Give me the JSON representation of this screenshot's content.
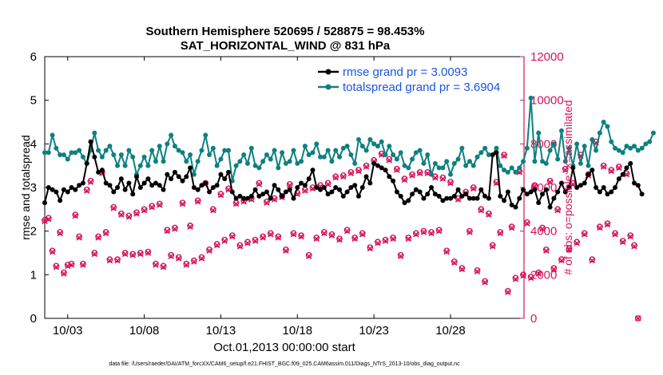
{
  "chart_data": {
    "type": "line",
    "title": "Southern Hemisphere 520695 / 528875 = 98.453%",
    "subtitle": "SAT_HORIZONTAL_WIND @ 831 hPa",
    "xlabel": "Oct.01,2013 00:00:00 start",
    "ylabel_left": "rmse and totalspread",
    "ylabel_right": "# of obs: o=possible; ×=assimilated",
    "footer": "data file: /Users/raeder/DAI/ATM_forcXX/CAM6_setup/f.e21.FHIST_BGC.f09_025.CAM6assim.011/Diags_NTrS_2013-10/obs_diag_output.nc",
    "xlim": [
      1.5,
      32.8
    ],
    "ylim_left": [
      0,
      6
    ],
    "ylim_right": [
      0,
      12000
    ],
    "x_ticks": [
      3,
      8,
      13,
      18,
      23,
      28
    ],
    "x_tick_labels": [
      "10/03",
      "10/08",
      "10/13",
      "10/18",
      "10/23",
      "10/28"
    ],
    "y_left_ticks": [
      "0",
      "1",
      "2",
      "3",
      "4",
      "5",
      "6"
    ],
    "y_right_ticks": [
      "0",
      "2000",
      "4000",
      "6000",
      "8000",
      "10000",
      "12000"
    ],
    "colors": {
      "rmse": "#000000",
      "spread": "#0e8080",
      "obs": "#d4145a",
      "legend_text": "#1a55e0"
    },
    "series": [
      {
        "name": "rmse grand pr = 3.0093",
        "axis": "left",
        "x_start": 1.5,
        "x_step": 0.25,
        "values": [
          2.65,
          3.0,
          2.95,
          2.9,
          2.7,
          2.95,
          2.9,
          3.0,
          2.95,
          3.05,
          3.1,
          3.55,
          4.05,
          3.7,
          3.35,
          3.4,
          3.1,
          3.05,
          2.9,
          3.0,
          3.2,
          2.95,
          3.1,
          2.85,
          3.25,
          3.0,
          3.1,
          3.2,
          3.05,
          3.1,
          3.05,
          2.95,
          3.3,
          3.2,
          3.35,
          3.25,
          3.15,
          3.25,
          3.45,
          3.0,
          2.95,
          3.05,
          3.1,
          2.9,
          3.0,
          3.05,
          3.3,
          3.2,
          3.35,
          2.9,
          2.75,
          2.8,
          2.75,
          2.75,
          2.8,
          2.95,
          2.8,
          2.85,
          2.9,
          2.75,
          3.05,
          2.95,
          2.8,
          2.9,
          2.95,
          2.75,
          3.0,
          3.1,
          3.05,
          3.2,
          3.4,
          3.0,
          2.95,
          3.0,
          2.85,
          2.9,
          3.0,
          2.95,
          2.8,
          2.9,
          3.0,
          3.05,
          2.8,
          3.0,
          3.25,
          3.1,
          3.55,
          3.5,
          3.45,
          3.4,
          3.25,
          3.15,
          2.9,
          2.8,
          2.65,
          2.7,
          2.85,
          2.95,
          2.9,
          2.75,
          2.85,
          3.0,
          2.85,
          2.8,
          2.7,
          2.75,
          2.75,
          2.8,
          2.95,
          2.8,
          2.85,
          2.75,
          2.75,
          2.75,
          2.95,
          2.8,
          2.75,
          3.75,
          3.8,
          2.8,
          2.7,
          2.9,
          2.6,
          2.55,
          2.75,
          2.95,
          2.85,
          2.9,
          2.95,
          2.65,
          2.85,
          2.95,
          2.55,
          2.75,
          2.9,
          3.1,
          2.9,
          3.0,
          3.45,
          3.0,
          3.05,
          3.1,
          3.3,
          3.4,
          3.0,
          2.9,
          3.0,
          2.85,
          2.9,
          3.0,
          3.2,
          3.3,
          3.45,
          3.55,
          3.1,
          3.05,
          2.85
        ]
      },
      {
        "name": "totalspread grand pr = 3.6904",
        "axis": "left",
        "x_start": 1.5,
        "x_step": 0.25,
        "values": [
          3.8,
          3.8,
          4.2,
          3.9,
          3.75,
          3.75,
          3.65,
          3.8,
          3.8,
          3.85,
          3.7,
          3.55,
          3.85,
          4.25,
          3.85,
          3.7,
          3.85,
          3.95,
          3.75,
          3.5,
          3.75,
          3.5,
          3.85,
          3.7,
          3.3,
          3.5,
          3.7,
          3.5,
          3.85,
          3.6,
          3.95,
          3.6,
          4.0,
          4.2,
          3.95,
          3.85,
          3.8,
          3.6,
          3.75,
          3.3,
          3.6,
          3.85,
          4.2,
          3.75,
          3.9,
          3.5,
          3.65,
          3.85,
          3.85,
          3.15,
          3.5,
          3.6,
          3.75,
          3.55,
          3.9,
          3.5,
          3.45,
          3.6,
          3.75,
          3.65,
          3.85,
          3.45,
          3.8,
          3.55,
          3.6,
          3.85,
          3.55,
          3.6,
          3.95,
          3.75,
          3.8,
          4.0,
          3.7,
          3.7,
          3.85,
          3.6,
          3.85,
          3.7,
          3.9,
          3.95,
          3.75,
          3.55,
          4.1,
          3.95,
          3.85,
          4.1,
          4.0,
          3.95,
          4.05,
          3.75,
          3.95,
          3.75,
          3.65,
          3.8,
          3.5,
          3.45,
          3.65,
          3.8,
          3.85,
          3.55,
          3.75,
          3.3,
          3.55,
          3.45,
          3.45,
          3.6,
          3.3,
          3.55,
          3.65,
          3.9,
          3.5,
          3.6,
          3.5,
          3.7,
          3.8,
          3.9,
          3.75,
          3.75,
          3.9,
          3.5,
          3.4,
          3.35,
          3.45,
          3.35,
          3.45,
          3.6,
          3.9,
          5.05,
          3.6,
          4.25,
          3.6,
          3.55,
          3.85,
          4.0,
          3.65,
          4.3,
          3.6,
          3.9,
          3.5,
          4.0,
          3.55,
          3.95,
          3.5,
          4.1,
          3.85,
          4.25,
          4.5,
          4.4,
          4.05,
          3.9,
          3.85,
          3.8,
          3.95,
          3.9,
          3.95,
          3.85,
          3.9,
          4.0,
          4.05,
          4.25
        ]
      },
      {
        "name": "obs possible",
        "axis": "right",
        "x_start": 1.5,
        "x_step": 0.25,
        "values": [
          4500,
          4600,
          3100,
          2400,
          3950,
          2100,
          2450,
          2500,
          4750,
          3750,
          2500,
          5900,
          6300,
          3000,
          3750,
          6700,
          3950,
          2700,
          5100,
          2700,
          4800,
          3000,
          4700,
          2950,
          4850,
          3000,
          5000,
          3050,
          5150,
          2500,
          5250,
          2400,
          4050,
          2900,
          4150,
          2800,
          5300,
          2500,
          4250,
          2650,
          5400,
          2800,
          6200,
          3150,
          5000,
          3400,
          5700,
          3600,
          5950,
          3800,
          5300,
          3350,
          5400,
          3500,
          5500,
          3600,
          6200,
          3750,
          5350,
          3900,
          5500,
          3750,
          5600,
          3150,
          6150,
          3900,
          5750,
          3800,
          5900,
          2900,
          6000,
          3700,
          6100,
          3950,
          6200,
          3850,
          6500,
          3650,
          6550,
          4050,
          6700,
          3700,
          6800,
          3900,
          7000,
          3250,
          7250,
          3500,
          7550,
          3600,
          7300,
          3700,
          6850,
          2900,
          6400,
          3700,
          6600,
          3900,
          6700,
          4000,
          6700,
          3950,
          6500,
          4050,
          6450,
          3100,
          6250,
          2600,
          5500,
          2300,
          5800,
          4000,
          6000,
          2200,
          5000,
          1700,
          4800,
          3350,
          6250,
          3950,
          7500,
          1250,
          4200,
          1850,
          6750,
          2000,
          4400,
          1900,
          6100,
          2100,
          4150,
          3150,
          6300,
          2300,
          5000,
          2700,
          6850,
          3200,
          6200,
          3500,
          7500,
          3900,
          6600,
          2700,
          8100,
          4200,
          7000,
          4350,
          6800,
          3900,
          6950,
          3550,
          6650,
          3800,
          3350,
          0
        ]
      },
      {
        "name": "obs assimilated",
        "axis": "right",
        "x_start": 1.5,
        "x_step": 0.25,
        "values": [
          4450,
          4550,
          3050,
          2350,
          3900,
          2050,
          2400,
          2450,
          4700,
          3700,
          2450,
          5850,
          6250,
          2950,
          3700,
          6650,
          3900,
          2650,
          5050,
          2650,
          4750,
          2950,
          4650,
          2900,
          4800,
          2950,
          4950,
          3000,
          5100,
          2450,
          5200,
          2350,
          4000,
          2850,
          4100,
          2750,
          5250,
          2450,
          4200,
          2600,
          5350,
          2750,
          6150,
          3100,
          4950,
          3350,
          5650,
          3550,
          5900,
          3750,
          5250,
          3300,
          5350,
          3450,
          5450,
          3550,
          6150,
          3700,
          5300,
          3850,
          5450,
          3700,
          5550,
          3100,
          6100,
          3850,
          5700,
          3750,
          5850,
          2850,
          5950,
          3650,
          6050,
          3900,
          6150,
          3800,
          6450,
          3600,
          6500,
          4000,
          6650,
          3650,
          6750,
          3850,
          6950,
          3200,
          7200,
          3450,
          7500,
          3550,
          7250,
          3650,
          6800,
          2850,
          6350,
          3650,
          6550,
          3850,
          6650,
          3950,
          6650,
          3900,
          6450,
          4000,
          6400,
          3050,
          6200,
          2550,
          5450,
          2250,
          5750,
          3950,
          5950,
          2150,
          4950,
          1650,
          4750,
          3300,
          6200,
          3900,
          7450,
          1200,
          4150,
          1800,
          6700,
          1950,
          4350,
          1850,
          6050,
          2050,
          4100,
          3100,
          6250,
          2250,
          4950,
          2650,
          6800,
          3150,
          6150,
          3450,
          7450,
          3850,
          6550,
          2650,
          8050,
          4150,
          6950,
          4300,
          6750,
          3850,
          6900,
          3500,
          6600,
          3750,
          3300,
          0
        ]
      }
    ],
    "legend": [
      {
        "label": "rmse grand pr = 3.0093",
        "color": "#000000"
      },
      {
        "label": "totalspread grand pr = 3.6904",
        "color": "#0e8080"
      }
    ],
    "legend_position": "top-right"
  }
}
